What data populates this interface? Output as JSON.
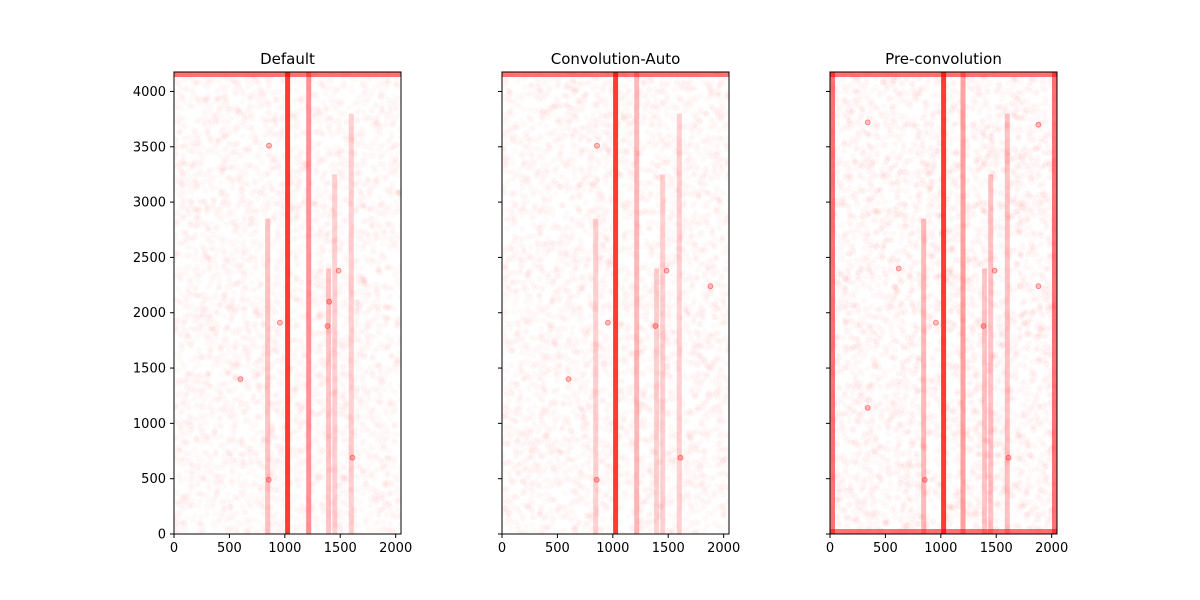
{
  "chart_data": [
    {
      "type": "scatter",
      "title": "Default",
      "xlim": [
        0,
        2048
      ],
      "ylim": [
        0,
        4176
      ],
      "xticks": [
        0,
        500,
        1000,
        1500,
        2000
      ],
      "yticks": [
        0,
        500,
        1000,
        1500,
        2000,
        2500,
        3000,
        3500,
        4000
      ],
      "show_yticklabels": true,
      "marker_color": "#ff0000",
      "marker_alpha": 0.02,
      "edge_bands": [
        "top"
      ],
      "column_features": [
        {
          "x": 1025,
          "y": [
            0,
            4176
          ],
          "strength": 0.85
        },
        {
          "x": 1215,
          "y": [
            0,
            4176
          ],
          "strength": 0.45
        },
        {
          "x": 845,
          "y": [
            0,
            2850
          ],
          "strength": 0.25
        },
        {
          "x": 1395,
          "y": [
            0,
            2400
          ],
          "strength": 0.25
        },
        {
          "x": 1600,
          "y": [
            0,
            3800
          ],
          "strength": 0.2
        },
        {
          "x": 1450,
          "y": [
            0,
            3250
          ],
          "strength": 0.2
        }
      ],
      "spots": [
        [
          857,
          3510
        ],
        [
          955,
          1910
        ],
        [
          1385,
          1880
        ],
        [
          1485,
          2380
        ],
        [
          1610,
          690
        ],
        [
          855,
          490
        ],
        [
          1400,
          2100
        ],
        [
          600,
          1400
        ]
      ]
    },
    {
      "type": "scatter",
      "title": "Convolution-Auto",
      "xlim": [
        0,
        2048
      ],
      "ylim": [
        0,
        4176
      ],
      "xticks": [
        0,
        500,
        1000,
        1500,
        2000
      ],
      "yticks": [
        0,
        500,
        1000,
        1500,
        2000,
        2500,
        3000,
        3500,
        4000
      ],
      "show_yticklabels": false,
      "marker_color": "#ff0000",
      "marker_alpha": 0.02,
      "edge_bands": [
        "top"
      ],
      "column_features": [
        {
          "x": 1025,
          "y": [
            0,
            4176
          ],
          "strength": 0.85
        },
        {
          "x": 1215,
          "y": [
            0,
            4176
          ],
          "strength": 0.3
        },
        {
          "x": 845,
          "y": [
            0,
            2850
          ],
          "strength": 0.2
        },
        {
          "x": 1395,
          "y": [
            0,
            2400
          ],
          "strength": 0.2
        },
        {
          "x": 1600,
          "y": [
            0,
            3800
          ],
          "strength": 0.2
        },
        {
          "x": 1450,
          "y": [
            0,
            3250
          ],
          "strength": 0.2
        }
      ],
      "spots": [
        [
          857,
          3510
        ],
        [
          955,
          1910
        ],
        [
          1385,
          1880
        ],
        [
          1485,
          2380
        ],
        [
          1610,
          690
        ],
        [
          855,
          490
        ],
        [
          1880,
          2240
        ],
        [
          600,
          1400
        ]
      ]
    },
    {
      "type": "scatter",
      "title": "Pre-convolution",
      "xlim": [
        0,
        2048
      ],
      "ylim": [
        0,
        4176
      ],
      "xticks": [
        0,
        500,
        1000,
        1500,
        2000
      ],
      "yticks": [
        0,
        500,
        1000,
        1500,
        2000,
        2500,
        3000,
        3500,
        4000
      ],
      "show_yticklabels": false,
      "marker_color": "#ff0000",
      "marker_alpha": 0.025,
      "edge_bands": [
        "top",
        "bottom",
        "left",
        "right"
      ],
      "column_features": [
        {
          "x": 1025,
          "y": [
            0,
            4176
          ],
          "strength": 0.85
        },
        {
          "x": 1200,
          "y": [
            0,
            4176
          ],
          "strength": 0.4
        },
        {
          "x": 845,
          "y": [
            0,
            2850
          ],
          "strength": 0.3
        },
        {
          "x": 1395,
          "y": [
            0,
            2400
          ],
          "strength": 0.25
        },
        {
          "x": 1600,
          "y": [
            0,
            3800
          ],
          "strength": 0.25
        },
        {
          "x": 1450,
          "y": [
            0,
            3250
          ],
          "strength": 0.25
        }
      ],
      "spots": [
        [
          340,
          3720
        ],
        [
          620,
          2400
        ],
        [
          955,
          1910
        ],
        [
          1385,
          1880
        ],
        [
          1485,
          2380
        ],
        [
          1610,
          690
        ],
        [
          855,
          490
        ],
        [
          340,
          1140
        ],
        [
          1880,
          2240
        ],
        [
          1880,
          3700
        ]
      ]
    }
  ]
}
